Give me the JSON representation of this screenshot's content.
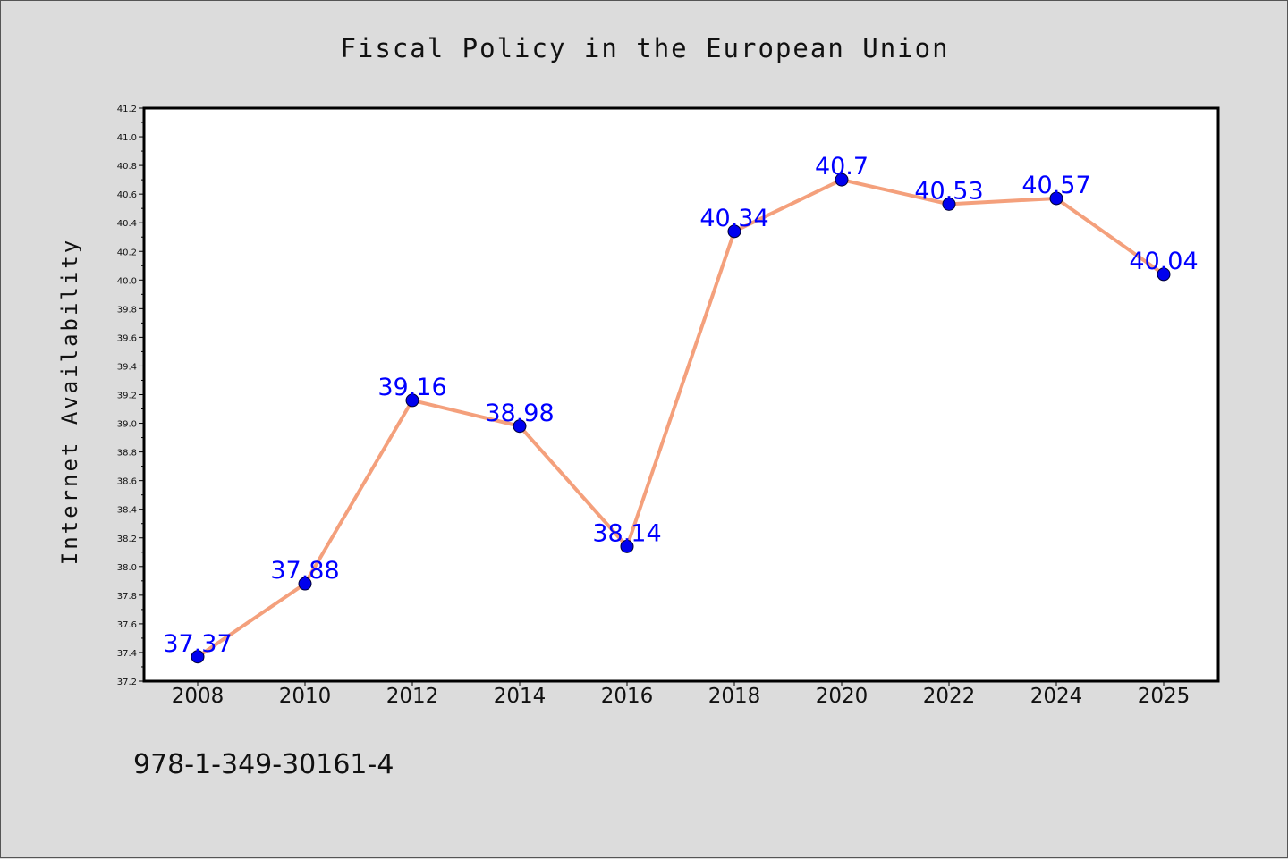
{
  "chart_data": {
    "type": "line",
    "title": "Fiscal Policy in the European Union",
    "xlabel": "",
    "ylabel": "Internet Availability",
    "categories": [
      "2008",
      "2010",
      "2012",
      "2014",
      "2016",
      "2018",
      "2020",
      "2022",
      "2024",
      "2025"
    ],
    "series": [
      {
        "values": [
          37.37,
          37.88,
          39.16,
          38.98,
          38.14,
          40.34,
          40.7,
          40.53,
          40.57,
          40.04
        ],
        "data_labels": [
          "37.37",
          "37.88",
          "39.16",
          "38.98",
          "38.14",
          "40.34",
          "40.7",
          "40.53",
          "40.57",
          "40.04"
        ],
        "line_color": "#f4a07c",
        "marker_color": "#0000ee"
      }
    ],
    "ylim": [
      37.2,
      41.2
    ],
    "yticks": [
      "37.2",
      "37.4",
      "37.6",
      "37.8",
      "38.0",
      "38.2",
      "38.4",
      "38.6",
      "38.8",
      "39.0",
      "39.2",
      "39.4",
      "39.6",
      "39.8",
      "40.0",
      "40.2",
      "40.4",
      "40.6",
      "40.8",
      "41.0",
      "41.2"
    ],
    "grid": false,
    "legend": "none",
    "label_color": "#0000ff",
    "background": "#dcdcdc",
    "plot_background": "#ffffff"
  },
  "footer": {
    "isbn": "978-1-349-30161-4"
  }
}
